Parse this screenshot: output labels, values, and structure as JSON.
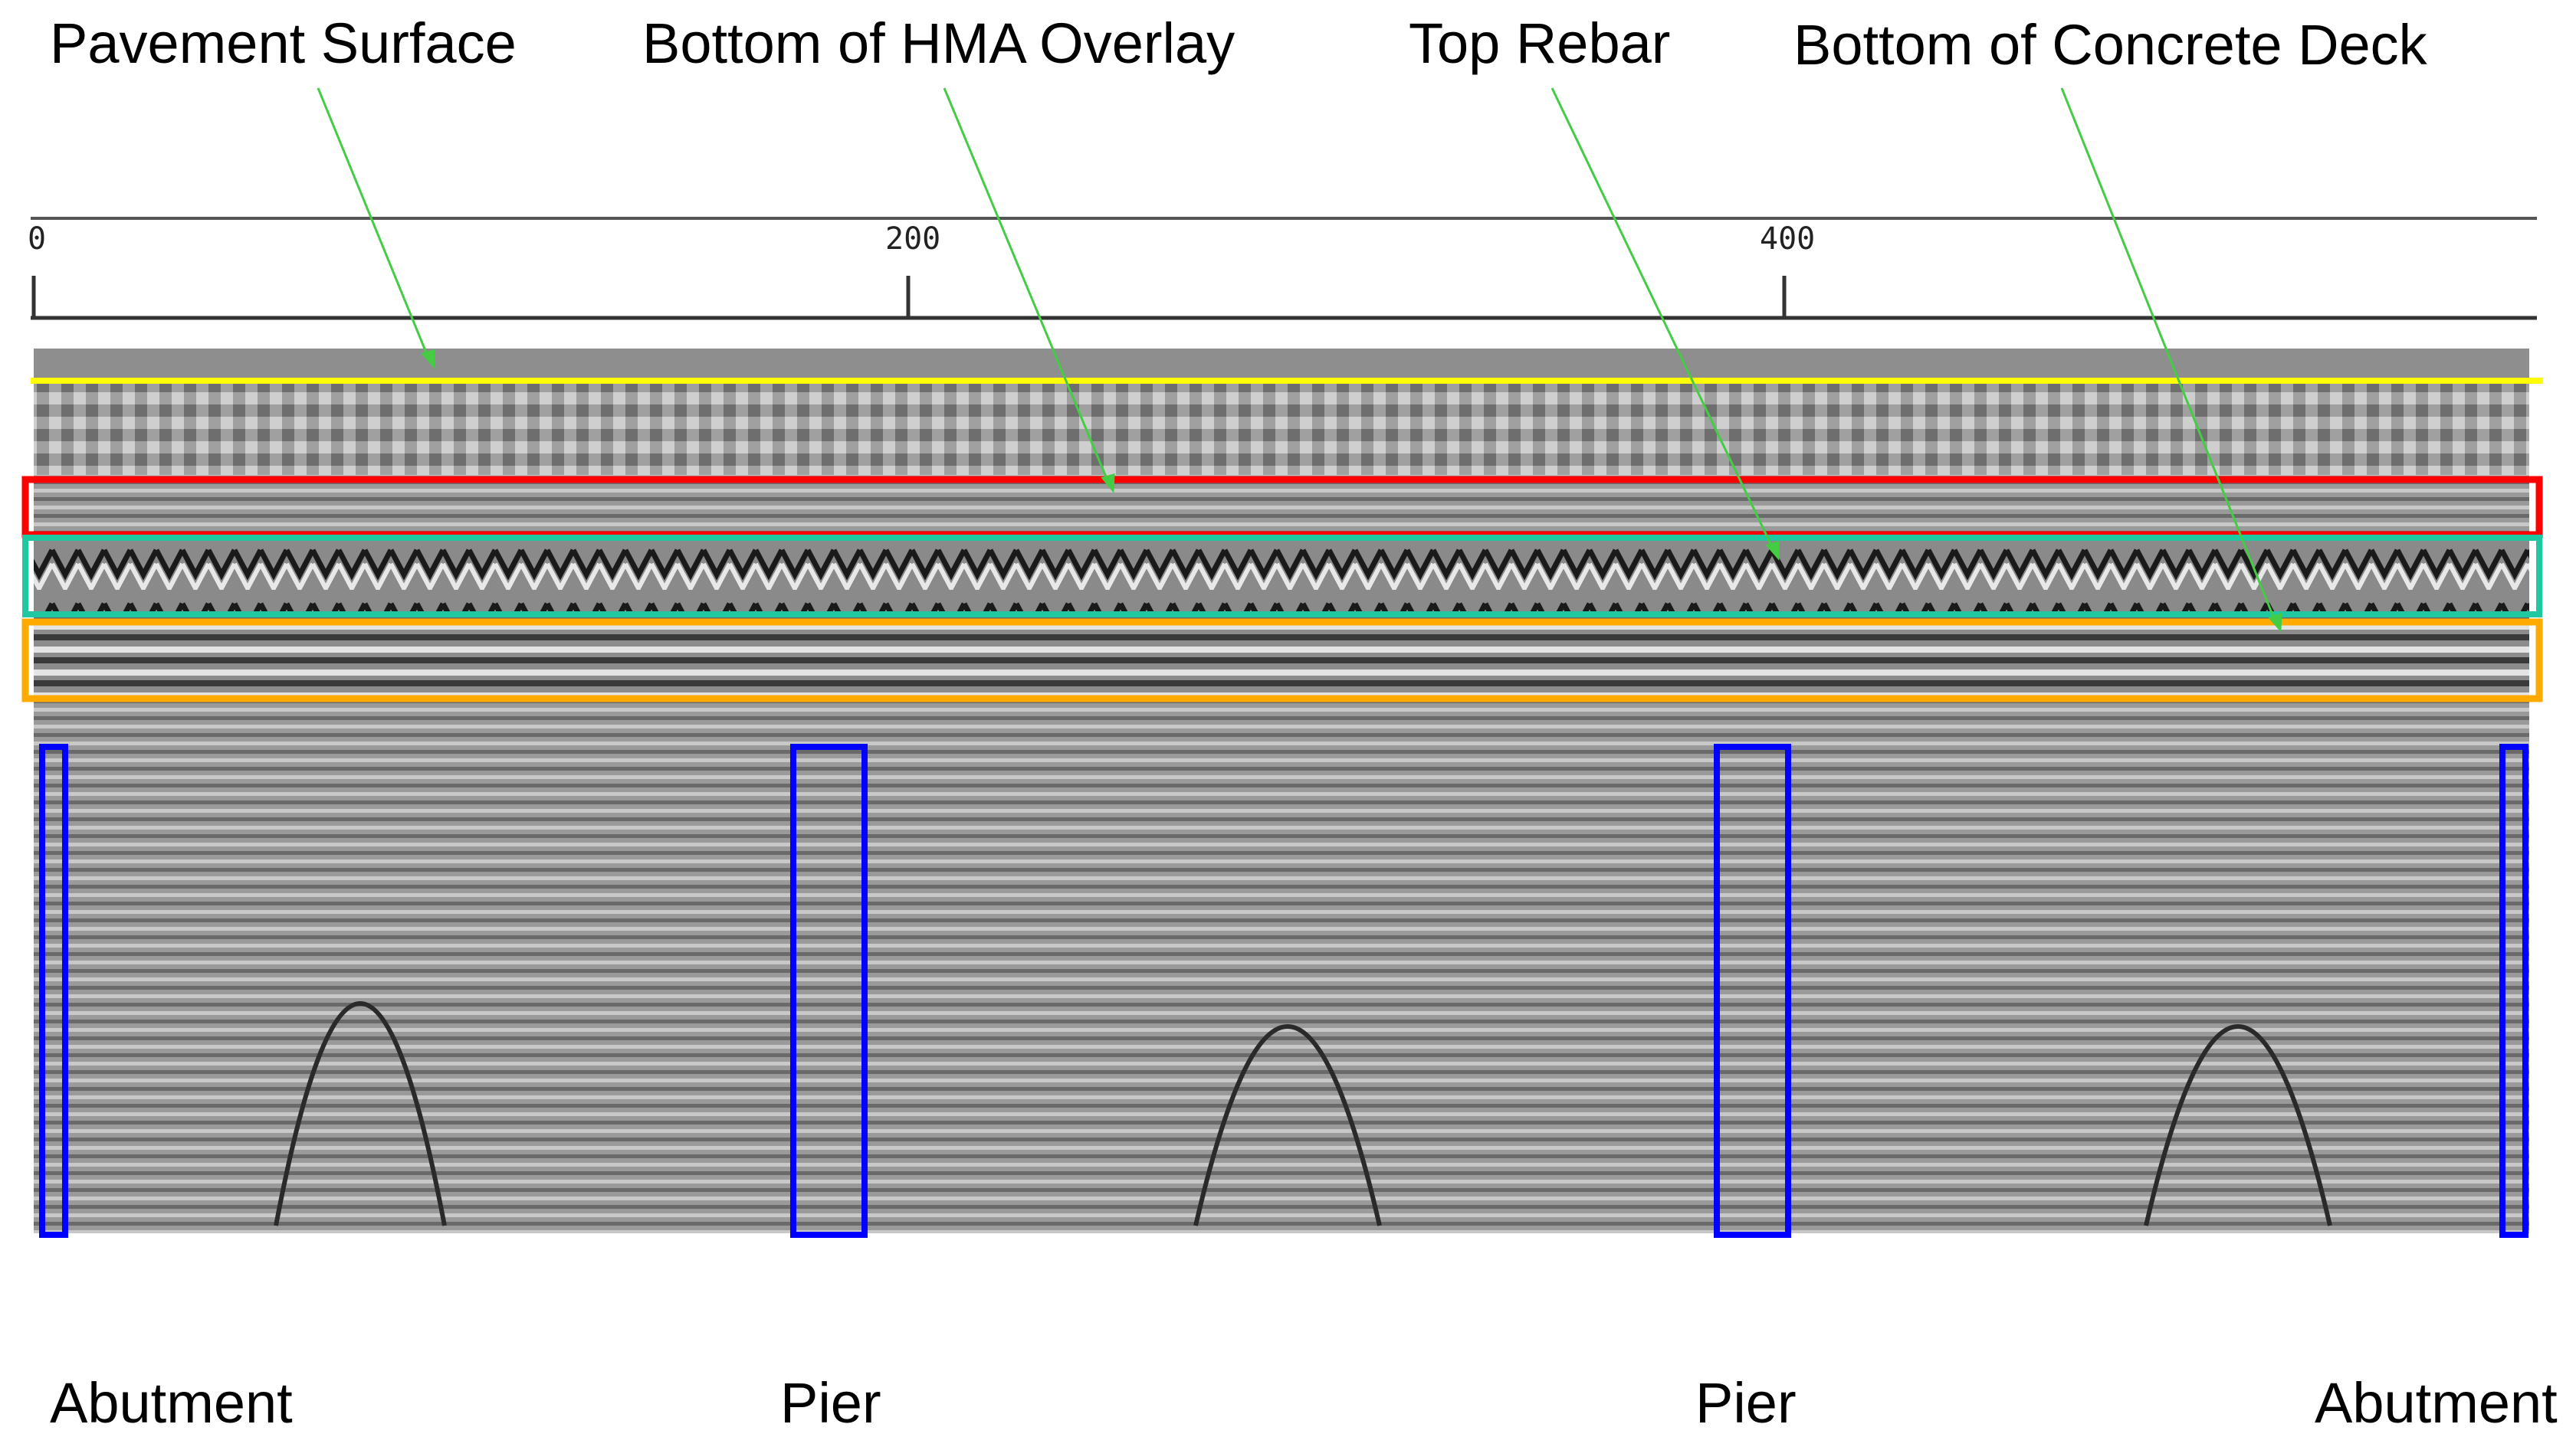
{
  "annotations": {
    "pavement_surface": "Pavement Surface",
    "bottom_hma_overlay": "Bottom of HMA Overlay",
    "top_rebar": "Top Rebar",
    "bottom_concrete_deck": "Bottom of Concrete Deck"
  },
  "supports": {
    "left_abutment": "Abutment",
    "pier_1": "Pier",
    "pier_2": "Pier",
    "right_abutment": "Abutment"
  },
  "distance_scale": {
    "ticks": [
      "0",
      "200",
      "400"
    ]
  },
  "colors": {
    "pavement_surface_line": "#ffff00",
    "hma_overlay_box": "#ff0000",
    "top_rebar_box": "#1fc8a0",
    "concrete_deck_box": "#ffaa00",
    "support_box": "#0000ff",
    "leader_line": "#44cc44",
    "radargram_background": "#9c9c9c"
  }
}
